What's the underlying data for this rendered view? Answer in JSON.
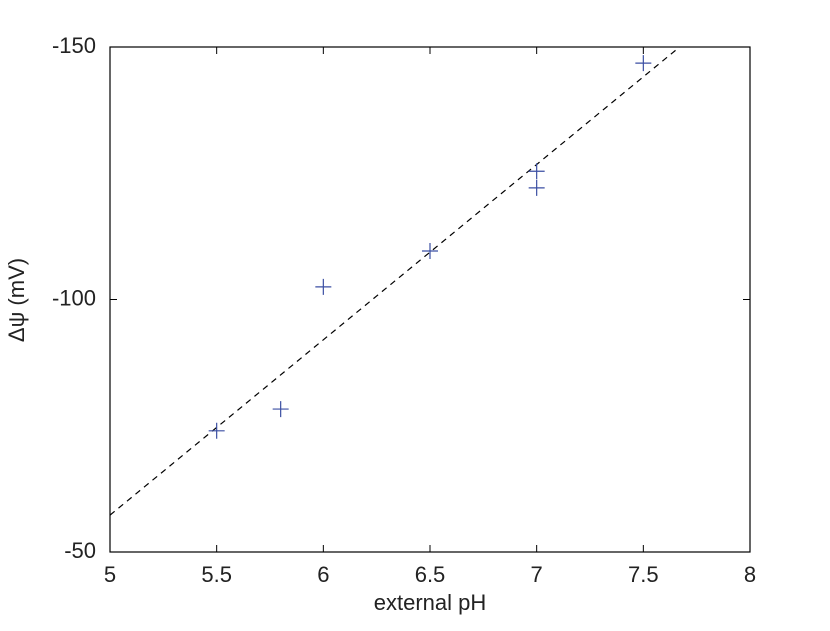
{
  "chart_data": {
    "type": "scatter",
    "x_label": "external pH",
    "y_label": "Δψ (mV)",
    "series": [
      {
        "color": "#3b4fa3",
        "marker": "+",
        "x": [
          5.5,
          5.8,
          6.0,
          6.5,
          7.0,
          7.0,
          7.5
        ],
        "values": [
          -74,
          -78.3,
          -102.5,
          -109.6,
          -125.4,
          -122.1,
          -146.8
        ]
      }
    ],
    "fit_line": {
      "color": "#000000",
      "dash": true,
      "x": [
        5,
        7.67
      ],
      "values": [
        -57.3,
        -150
      ]
    },
    "xlim": [
      5,
      8
    ],
    "xticks": [
      5,
      5.5,
      6,
      6.5,
      7,
      7.5,
      8
    ],
    "ylim": [
      -50,
      -150
    ],
    "yticks": [
      -150,
      -100,
      -50
    ]
  }
}
